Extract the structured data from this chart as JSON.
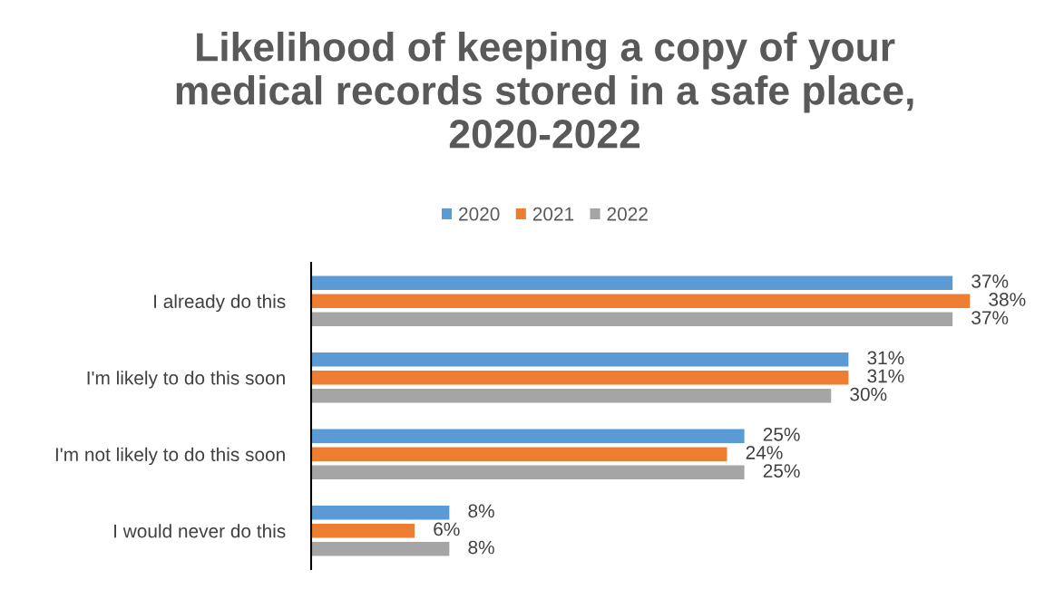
{
  "chart_data": {
    "type": "bar",
    "orientation": "horizontal",
    "title": "Likelihood of keeping a copy of your\nmedical records stored in a safe place,\n2020-2022",
    "categories": [
      "I already do this",
      "I'm likely to do this soon",
      "I'm not likely to do this soon",
      "I would never do this"
    ],
    "series": [
      {
        "name": "2020",
        "color": "#5b9bd5",
        "values": [
          37,
          31,
          25,
          8
        ],
        "value_labels": [
          "37%",
          "31%",
          "25%",
          "8%"
        ]
      },
      {
        "name": "2021",
        "color": "#ed7d31",
        "values": [
          38,
          31,
          24,
          6
        ],
        "value_labels": [
          "38%",
          "31%",
          "24%",
          "6%"
        ]
      },
      {
        "name": "2022",
        "color": "#a5a5a5",
        "values": [
          37,
          30,
          25,
          8
        ],
        "value_labels": [
          "37%",
          "30%",
          "25%",
          "8%"
        ]
      }
    ],
    "legend": "top",
    "tick_labels": "y"
  }
}
